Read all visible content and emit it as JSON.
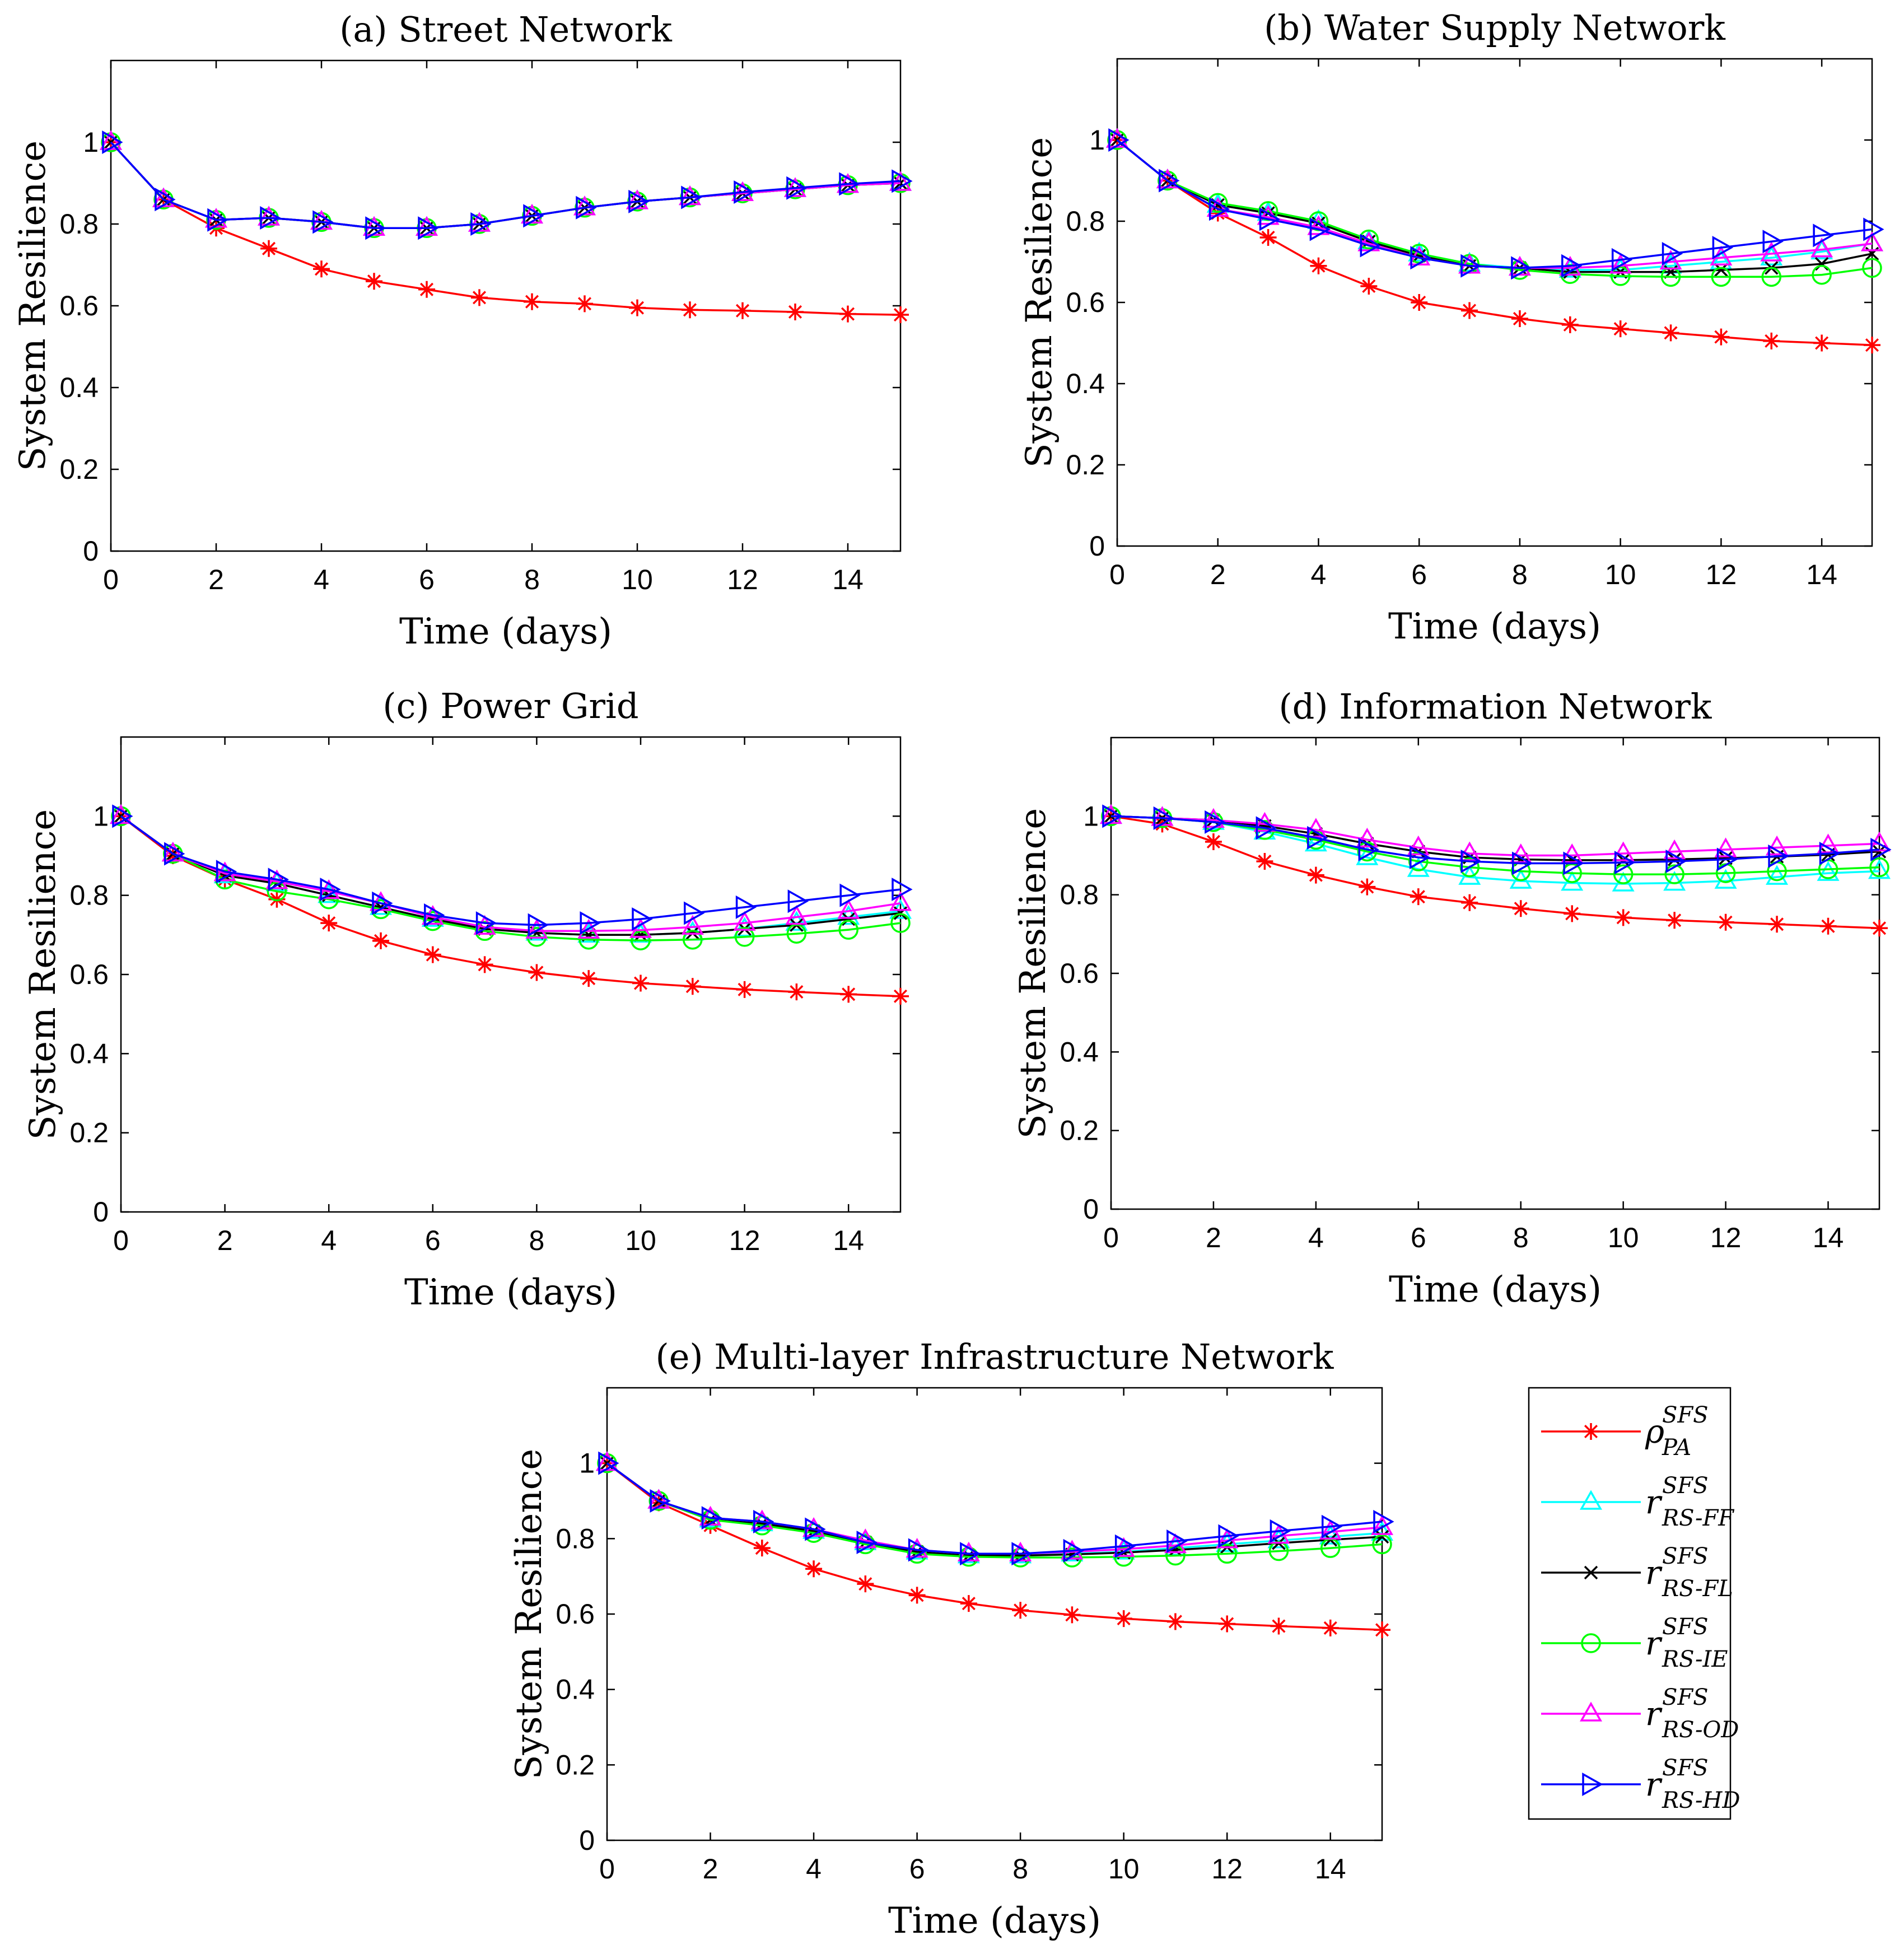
{
  "chart_data": [
    {
      "type": "line",
      "title": "(a) Street Network",
      "xlabel": "Time (days)",
      "ylabel": "System Resilience",
      "xlim": [
        0,
        15
      ],
      "ylim": [
        0,
        1.2
      ],
      "xticks": [
        "0",
        "2",
        "4",
        "6",
        "8",
        "10",
        "12",
        "14"
      ],
      "yticks": [
        "0",
        "0.2",
        "0.4",
        "0.6",
        "0.8",
        "1"
      ],
      "x": [
        0,
        1,
        2,
        3,
        4,
        5,
        6,
        7,
        8,
        9,
        10,
        11,
        12,
        13,
        14,
        15
      ],
      "series": [
        {
          "key": "PA",
          "values": [
            1,
            0.86,
            0.79,
            0.74,
            0.69,
            0.66,
            0.64,
            0.62,
            0.61,
            0.605,
            0.595,
            0.59,
            0.588,
            0.585,
            0.58,
            0.578
          ]
        },
        {
          "key": "FF",
          "values": [
            1,
            0.86,
            0.81,
            0.815,
            0.805,
            0.79,
            0.79,
            0.8,
            0.82,
            0.84,
            0.855,
            0.865,
            0.875,
            0.885,
            0.895,
            0.9
          ]
        },
        {
          "key": "FL",
          "values": [
            1,
            0.86,
            0.81,
            0.815,
            0.805,
            0.79,
            0.79,
            0.8,
            0.82,
            0.84,
            0.855,
            0.865,
            0.875,
            0.885,
            0.895,
            0.9
          ]
        },
        {
          "key": "IE",
          "values": [
            1,
            0.86,
            0.81,
            0.815,
            0.805,
            0.79,
            0.79,
            0.8,
            0.82,
            0.84,
            0.855,
            0.865,
            0.875,
            0.885,
            0.895,
            0.9
          ]
        },
        {
          "key": "OD",
          "values": [
            1,
            0.86,
            0.81,
            0.815,
            0.805,
            0.79,
            0.79,
            0.8,
            0.82,
            0.84,
            0.855,
            0.865,
            0.875,
            0.885,
            0.895,
            0.9
          ]
        },
        {
          "key": "HD",
          "values": [
            1,
            0.86,
            0.81,
            0.815,
            0.805,
            0.79,
            0.79,
            0.8,
            0.82,
            0.84,
            0.855,
            0.865,
            0.878,
            0.888,
            0.898,
            0.905
          ]
        }
      ]
    },
    {
      "type": "line",
      "title": "(b) Water Supply Network",
      "xlabel": "Time (days)",
      "ylabel": "System Resilience",
      "xlim": [
        0,
        15
      ],
      "ylim": [
        0,
        1.2
      ],
      "xticks": [
        "0",
        "2",
        "4",
        "6",
        "8",
        "10",
        "12",
        "14"
      ],
      "yticks": [
        "0",
        "0.2",
        "0.4",
        "0.6",
        "0.8",
        "1"
      ],
      "x": [
        0,
        1,
        2,
        3,
        4,
        5,
        6,
        7,
        8,
        9,
        10,
        11,
        12,
        13,
        14,
        15
      ],
      "series": [
        {
          "key": "PA",
          "values": [
            1,
            0.9,
            0.82,
            0.76,
            0.69,
            0.64,
            0.6,
            0.58,
            0.56,
            0.545,
            0.535,
            0.525,
            0.515,
            0.505,
            0.5,
            0.495
          ]
        },
        {
          "key": "FF",
          "values": [
            1,
            0.9,
            0.84,
            0.82,
            0.8,
            0.75,
            0.72,
            0.695,
            0.685,
            0.68,
            0.68,
            0.69,
            0.7,
            0.71,
            0.725,
            0.745
          ]
        },
        {
          "key": "FL",
          "values": [
            1,
            0.9,
            0.84,
            0.82,
            0.795,
            0.75,
            0.715,
            0.69,
            0.685,
            0.675,
            0.675,
            0.675,
            0.68,
            0.685,
            0.695,
            0.72
          ]
        },
        {
          "key": "IE",
          "values": [
            1,
            0.9,
            0.845,
            0.825,
            0.8,
            0.755,
            0.72,
            0.695,
            0.68,
            0.67,
            0.665,
            0.663,
            0.663,
            0.663,
            0.668,
            0.685
          ]
        },
        {
          "key": "OD",
          "values": [
            1,
            0.9,
            0.83,
            0.81,
            0.785,
            0.745,
            0.71,
            0.69,
            0.685,
            0.685,
            0.69,
            0.7,
            0.71,
            0.72,
            0.73,
            0.745
          ]
        },
        {
          "key": "HD",
          "values": [
            1,
            0.9,
            0.83,
            0.805,
            0.78,
            0.74,
            0.71,
            0.69,
            0.685,
            0.69,
            0.705,
            0.72,
            0.735,
            0.75,
            0.765,
            0.78
          ]
        }
      ]
    },
    {
      "type": "line",
      "title": "(c) Power Grid",
      "xlabel": "Time (days)",
      "ylabel": "System Resilience",
      "xlim": [
        0,
        15
      ],
      "ylim": [
        0,
        1.2
      ],
      "xticks": [
        "0",
        "2",
        "4",
        "6",
        "8",
        "10",
        "12",
        "14"
      ],
      "yticks": [
        "0",
        "0.2",
        "0.4",
        "0.6",
        "0.8",
        "1"
      ],
      "x": [
        0,
        1,
        2,
        3,
        4,
        5,
        6,
        7,
        8,
        9,
        10,
        11,
        12,
        13,
        14,
        15
      ],
      "series": [
        {
          "key": "PA",
          "values": [
            1,
            0.9,
            0.84,
            0.79,
            0.73,
            0.685,
            0.65,
            0.625,
            0.605,
            0.59,
            0.578,
            0.57,
            0.562,
            0.556,
            0.55,
            0.545
          ]
        },
        {
          "key": "FF",
          "values": [
            1,
            0.905,
            0.85,
            0.83,
            0.8,
            0.77,
            0.74,
            0.72,
            0.705,
            0.7,
            0.7,
            0.705,
            0.715,
            0.73,
            0.745,
            0.76
          ]
        },
        {
          "key": "FL",
          "values": [
            1,
            0.905,
            0.85,
            0.83,
            0.8,
            0.77,
            0.74,
            0.715,
            0.705,
            0.7,
            0.7,
            0.705,
            0.715,
            0.725,
            0.74,
            0.755
          ]
        },
        {
          "key": "IE",
          "values": [
            1,
            0.905,
            0.84,
            0.81,
            0.79,
            0.765,
            0.735,
            0.71,
            0.695,
            0.688,
            0.686,
            0.688,
            0.695,
            0.703,
            0.713,
            0.73
          ]
        },
        {
          "key": "OD",
          "values": [
            1,
            0.905,
            0.855,
            0.835,
            0.81,
            0.78,
            0.745,
            0.72,
            0.71,
            0.71,
            0.712,
            0.72,
            0.73,
            0.745,
            0.76,
            0.78
          ]
        },
        {
          "key": "HD",
          "values": [
            1,
            0.905,
            0.86,
            0.84,
            0.815,
            0.78,
            0.75,
            0.73,
            0.725,
            0.73,
            0.74,
            0.755,
            0.77,
            0.785,
            0.8,
            0.815
          ]
        }
      ]
    },
    {
      "type": "line",
      "title": "(d) Information Network",
      "xlabel": "Time (days)",
      "ylabel": "System Resilience",
      "xlim": [
        0,
        15
      ],
      "ylim": [
        0,
        1.2
      ],
      "xticks": [
        "0",
        "2",
        "4",
        "6",
        "8",
        "10",
        "12",
        "14"
      ],
      "yticks": [
        "0",
        "0.2",
        "0.4",
        "0.6",
        "0.8",
        "1"
      ],
      "x": [
        0,
        1,
        2,
        3,
        4,
        5,
        6,
        7,
        8,
        9,
        10,
        11,
        12,
        13,
        14,
        15
      ],
      "series": [
        {
          "key": "PA",
          "values": [
            1,
            0.98,
            0.935,
            0.885,
            0.85,
            0.82,
            0.795,
            0.78,
            0.765,
            0.752,
            0.742,
            0.735,
            0.73,
            0.725,
            0.72,
            0.715
          ]
        },
        {
          "key": "FF",
          "values": [
            1,
            0.995,
            0.985,
            0.96,
            0.93,
            0.895,
            0.865,
            0.845,
            0.835,
            0.83,
            0.828,
            0.83,
            0.835,
            0.845,
            0.855,
            0.86
          ]
        },
        {
          "key": "FL",
          "values": [
            1,
            0.995,
            0.99,
            0.975,
            0.955,
            0.93,
            0.91,
            0.895,
            0.89,
            0.888,
            0.888,
            0.89,
            0.893,
            0.897,
            0.902,
            0.91
          ]
        },
        {
          "key": "IE",
          "values": [
            1,
            0.995,
            0.985,
            0.965,
            0.94,
            0.91,
            0.885,
            0.87,
            0.86,
            0.855,
            0.852,
            0.852,
            0.855,
            0.86,
            0.865,
            0.87
          ]
        },
        {
          "key": "OD",
          "values": [
            1,
            0.995,
            0.99,
            0.98,
            0.965,
            0.94,
            0.92,
            0.905,
            0.9,
            0.9,
            0.905,
            0.91,
            0.915,
            0.92,
            0.925,
            0.93
          ]
        },
        {
          "key": "HD",
          "values": [
            1,
            0.995,
            0.985,
            0.97,
            0.945,
            0.915,
            0.895,
            0.885,
            0.88,
            0.88,
            0.882,
            0.885,
            0.89,
            0.898,
            0.905,
            0.915
          ]
        }
      ]
    },
    {
      "type": "line",
      "title": "(e) Multi-layer Infrastructure Network",
      "xlabel": "Time (days)",
      "ylabel": "System Resilience",
      "xlim": [
        0,
        15
      ],
      "ylim": [
        0,
        1.2
      ],
      "xticks": [
        "0",
        "2",
        "4",
        "6",
        "8",
        "10",
        "12",
        "14"
      ],
      "yticks": [
        "0",
        "0.2",
        "0.4",
        "0.6",
        "0.8",
        "1"
      ],
      "x": [
        0,
        1,
        2,
        3,
        4,
        5,
        6,
        7,
        8,
        9,
        10,
        11,
        12,
        13,
        14,
        15
      ],
      "series": [
        {
          "key": "PA",
          "values": [
            1,
            0.895,
            0.835,
            0.775,
            0.72,
            0.68,
            0.65,
            0.628,
            0.61,
            0.598,
            0.588,
            0.58,
            0.574,
            0.568,
            0.563,
            0.558
          ]
        },
        {
          "key": "FF",
          "values": [
            1,
            0.9,
            0.85,
            0.84,
            0.82,
            0.79,
            0.765,
            0.755,
            0.755,
            0.76,
            0.765,
            0.775,
            0.785,
            0.795,
            0.805,
            0.815
          ]
        },
        {
          "key": "FL",
          "values": [
            1,
            0.9,
            0.85,
            0.84,
            0.82,
            0.79,
            0.765,
            0.755,
            0.755,
            0.758,
            0.763,
            0.77,
            0.778,
            0.788,
            0.797,
            0.805
          ]
        },
        {
          "key": "IE",
          "values": [
            1,
            0.9,
            0.85,
            0.835,
            0.815,
            0.785,
            0.76,
            0.752,
            0.75,
            0.75,
            0.752,
            0.755,
            0.76,
            0.767,
            0.775,
            0.785
          ]
        },
        {
          "key": "OD",
          "values": [
            1,
            0.9,
            0.855,
            0.845,
            0.825,
            0.795,
            0.77,
            0.76,
            0.76,
            0.765,
            0.772,
            0.782,
            0.795,
            0.807,
            0.818,
            0.83
          ]
        },
        {
          "key": "HD",
          "values": [
            1,
            0.9,
            0.855,
            0.845,
            0.825,
            0.79,
            0.77,
            0.76,
            0.76,
            0.768,
            0.78,
            0.793,
            0.807,
            0.82,
            0.832,
            0.845
          ]
        }
      ]
    }
  ],
  "legend": {
    "placement": "right of panel (e)",
    "entries": [
      {
        "key": "PA",
        "symbol": "ρ",
        "sup": "SFS",
        "sub": "PA",
        "color": "#ff0000",
        "marker": "asterisk"
      },
      {
        "key": "FF",
        "symbol": "r",
        "sup": "SFS",
        "sub": "RS-FF",
        "color": "#00ffff",
        "marker": "triangle-up"
      },
      {
        "key": "FL",
        "symbol": "r",
        "sup": "SFS",
        "sub": "RS-FL",
        "color": "#000000",
        "marker": "x"
      },
      {
        "key": "IE",
        "symbol": "r",
        "sup": "SFS",
        "sub": "RS-IE",
        "color": "#00ff00",
        "marker": "circle"
      },
      {
        "key": "OD",
        "symbol": "r",
        "sup": "SFS",
        "sub": "RS-OD",
        "color": "#ff00ff",
        "marker": "triangle-up"
      },
      {
        "key": "HD",
        "symbol": "r",
        "sup": "SFS",
        "sub": "RS-HD",
        "color": "#0000ff",
        "marker": "triangle-right"
      }
    ]
  }
}
